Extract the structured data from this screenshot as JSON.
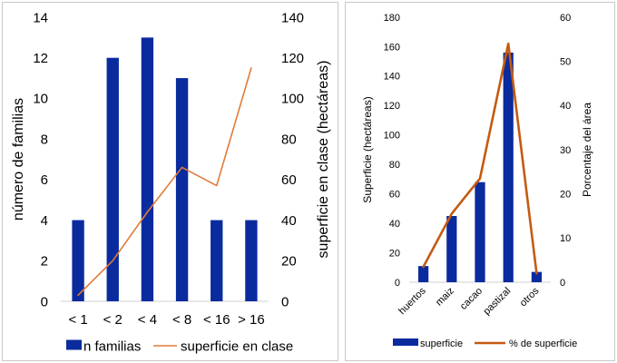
{
  "chart_data": [
    {
      "type": "bar+line",
      "title": "",
      "categories": [
        "< 1",
        "< 2",
        "< 4",
        "< 8",
        "< 16",
        "> 16"
      ],
      "series": [
        {
          "name": "n familias",
          "kind": "bar",
          "axis": "left",
          "color": "#0a2b9e",
          "values": [
            4,
            12,
            13,
            11,
            4,
            4
          ]
        },
        {
          "name": "superficie en clase",
          "kind": "line",
          "axis": "right",
          "color": "#e07b39",
          "values": [
            3,
            20,
            44,
            66,
            57,
            115
          ]
        }
      ],
      "ylabel": "número de familias",
      "ylim": [
        0,
        14
      ],
      "yticks": [
        0,
        2,
        4,
        6,
        8,
        10,
        12,
        14
      ],
      "y2label": "superficie en clase (hectáreas)",
      "y2lim": [
        0,
        140
      ],
      "y2ticks": [
        0,
        20,
        40,
        60,
        80,
        100,
        120,
        140
      ],
      "legend": [
        "n familias",
        "superficie en clase"
      ],
      "legend_position": "bottom"
    },
    {
      "type": "bar+line",
      "title": "",
      "categories": [
        "huertos",
        "maiz",
        "cacao",
        "pastizal",
        "otros"
      ],
      "series": [
        {
          "name": "superficie",
          "kind": "bar",
          "axis": "left",
          "color": "#0a2b9e",
          "values": [
            11,
            45,
            68,
            156,
            7
          ]
        },
        {
          "name": "% de superficie",
          "kind": "line",
          "axis": "right",
          "color": "#c55a11",
          "values": [
            3.5,
            15.5,
            23.5,
            54,
            2
          ]
        }
      ],
      "ylabel": "Superficie (hectáreas)",
      "ylim": [
        0,
        180
      ],
      "yticks": [
        0,
        20,
        40,
        60,
        80,
        100,
        120,
        140,
        160,
        180
      ],
      "y2label": "Porcentaje del área",
      "y2lim": [
        0,
        60
      ],
      "y2ticks": [
        0,
        10,
        20,
        30,
        40,
        50,
        60
      ],
      "legend": [
        "superficie",
        "% de superficie"
      ],
      "legend_position": "bottom"
    }
  ]
}
